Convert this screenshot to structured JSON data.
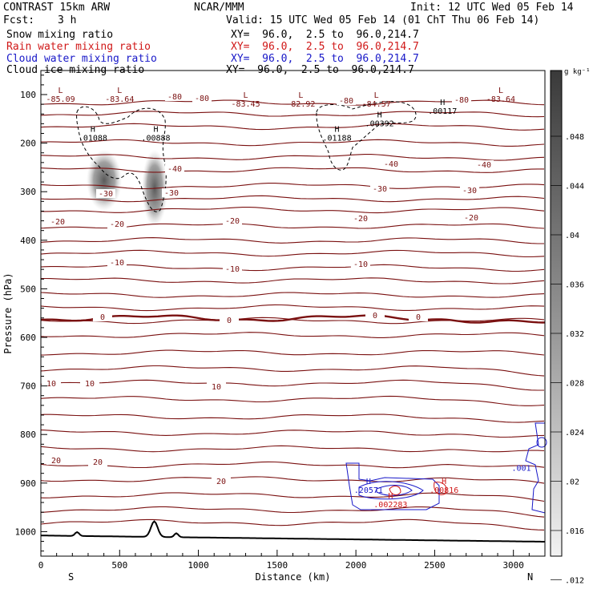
{
  "header": {
    "model": "CONTRAST 15km ARW",
    "org": "NCAR/MMM",
    "init": "Init: 12 UTC Wed 05 Feb 14",
    "fcst_label": "Fcst:",
    "fcst_value": "3 h",
    "valid": "Valid: 15 UTC Wed 05 Feb 14 (01 ChT Thu 06 Feb 14)",
    "fields": [
      {
        "name": "Snow mixing ratio",
        "xy": "XY=  96.0,  2.5 to  96.0,214.7",
        "color": "#000000"
      },
      {
        "name": "Rain water mixing ratio",
        "xy": "XY=  96.0,  2.5 to  96.0,214.7",
        "color": "#d01818"
      },
      {
        "name": "Cloud water mixing ratio",
        "xy": "XY=  96.0,  2.5 to  96.0,214.7",
        "color": "#1818c8"
      },
      {
        "name": "Cloud ice mixing ratio",
        "xy": "XY=  96.0,  2.5 to  96.0,214.7",
        "color": "#000000"
      }
    ]
  },
  "chart_data": {
    "type": "cross-section",
    "xlabel": "Distance (km)",
    "ylabel": "Pressure (hPa)",
    "xlim": [
      0,
      3200
    ],
    "ylim": [
      1050,
      50
    ],
    "x_ticks": [
      0,
      500,
      1000,
      1500,
      2000,
      2500,
      3000
    ],
    "y_ticks": [
      100,
      200,
      300,
      400,
      500,
      600,
      700,
      800,
      900,
      1000
    ],
    "x_end_labels": {
      "left": "S",
      "right": "N"
    },
    "temperature_isotherms_C": [
      {
        "value": -80,
        "label": "-80"
      },
      {
        "value": -40,
        "label": "-40"
      },
      {
        "value": -30,
        "label": "-30"
      },
      {
        "value": -20,
        "label": "-20"
      },
      {
        "value": -10,
        "label": "-10"
      },
      {
        "value": 0,
        "label": "0"
      },
      {
        "value": 10,
        "label": "10"
      },
      {
        "value": 20,
        "label": "20"
      }
    ],
    "extrema_labels": [
      {
        "type": "L",
        "value": "-85.09",
        "x": 125,
        "p": 115
      },
      {
        "type": "L",
        "value": "-83.64",
        "x": 500,
        "p": 115
      },
      {
        "type": "L",
        "value": "-83.45",
        "x": 1300,
        "p": 125
      },
      {
        "type": "L",
        "value": "-82.92",
        "x": 1650,
        "p": 125
      },
      {
        "type": "L",
        "value": "-84.57",
        "x": 2130,
        "p": 125
      },
      {
        "type": "L",
        "value": "-83.64",
        "x": 2920,
        "p": 115
      },
      {
        "type": "H",
        "value": ".01088",
        "x": 330,
        "p": 195
      },
      {
        "type": "H",
        "value": ".00888",
        "x": 730,
        "p": 195
      },
      {
        "type": "H",
        "value": ".01188",
        "x": 1880,
        "p": 195
      },
      {
        "type": "H",
        "value": ".00392",
        "x": 2150,
        "p": 165
      },
      {
        "type": "H",
        "value": ".00117",
        "x": 2550,
        "p": 140
      },
      {
        "type": "H",
        "value": ".20571",
        "x": 2080,
        "p": 920
      },
      {
        "type": "H",
        "value": ".00816",
        "x": 2560,
        "p": 920
      },
      {
        "type": "H",
        "value": ".002283",
        "x": 2220,
        "p": 950
      },
      {
        "type": "",
        "value": ".001",
        "x": 3050,
        "p": 875
      }
    ],
    "snow_max_regions_km": [
      [
        300,
        500
      ],
      [
        650,
        800
      ]
    ],
    "colorbar": {
      "units": "g kg⁻¹",
      "labels": [
        ".048",
        ".044",
        ".04",
        ".036",
        ".032",
        ".028",
        ".024",
        ".02",
        ".016",
        ".012"
      ]
    },
    "terrain_peaks_km": [
      230,
      720,
      860
    ]
  }
}
